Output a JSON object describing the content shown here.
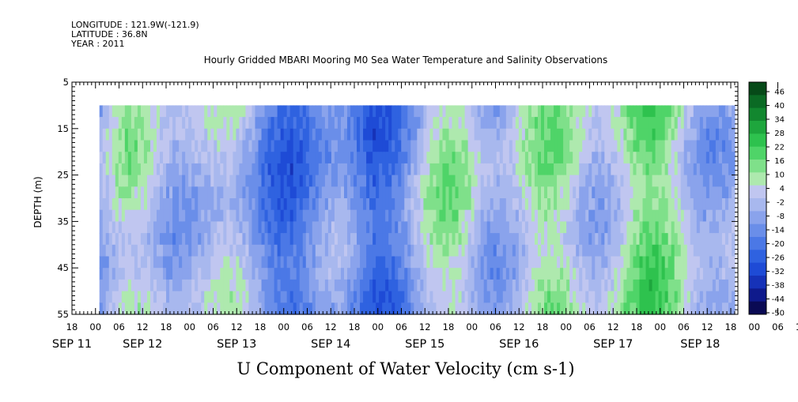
{
  "meta": {
    "longitude": "LONGITUDE : 121.9W(-121.9)",
    "latitude": "LATITUDE : 36.8N",
    "year": "YEAR : 2011"
  },
  "chart_data": {
    "type": "heatmap",
    "title": "Hourly Gridded MBARI Mooring M0 Sea Water Temperature and Salinity Observations",
    "xlabel": "U Component of Water Velocity (cm s-1)",
    "ylabel": "DEPTH (m)",
    "ylim": [
      55,
      5
    ],
    "y_ticks": [
      5,
      15,
      25,
      35,
      45,
      55
    ],
    "hour_tick_labels": [
      "18",
      "00",
      "06",
      "12",
      "18",
      "00",
      "06",
      "12",
      "18",
      "00",
      "06",
      "12",
      "18",
      "00",
      "06",
      "12",
      "18",
      "00",
      "06",
      "12",
      "18",
      "00",
      "06",
      "12",
      "18",
      "00",
      "06",
      "12",
      "18",
      "00",
      "06",
      "12",
      "18"
    ],
    "date_labels": [
      "SEP 11",
      "SEP 12",
      "SEP 13",
      "SEP 14",
      "SEP 15",
      "SEP 16",
      "SEP 17",
      "SEP 18"
    ],
    "data_depth_range": [
      10,
      55
    ],
    "colorbar": {
      "min": -50,
      "max": 50,
      "labels": [
        "46",
        "40",
        "34",
        "28",
        "22",
        "16",
        "10",
        "4",
        "-2",
        "-8",
        "-14",
        "-20",
        "-26",
        "-32",
        "-38",
        "-44",
        "-50"
      ],
      "colors": [
        "#0a0a54",
        "#0f1a8c",
        "#1632b8",
        "#1e4bd6",
        "#2f62e0",
        "#4b78e6",
        "#6a8ee9",
        "#8aa3ec",
        "#a8b8ee",
        "#c0c6f0",
        "#aee9ae",
        "#7fe08a",
        "#4fd468",
        "#2ec24e",
        "#1ea63d",
        "#12872f",
        "#0b6a24",
        "#064a18"
      ]
    },
    "velocity_profile": [
      {
        "date": "SEP 11 00",
        "u": -14
      },
      {
        "date": "SEP 12 06",
        "u": 4
      },
      {
        "date": "SEP 13 06",
        "u": -8
      },
      {
        "date": "SEP 14 06",
        "u": -26
      },
      {
        "date": "SEP 15 06",
        "u": 4
      },
      {
        "date": "SEP 16 06",
        "u": 10
      },
      {
        "date": "SEP 17 06",
        "u": 4
      },
      {
        "date": "SEP 18 06",
        "u": -8
      }
    ]
  }
}
